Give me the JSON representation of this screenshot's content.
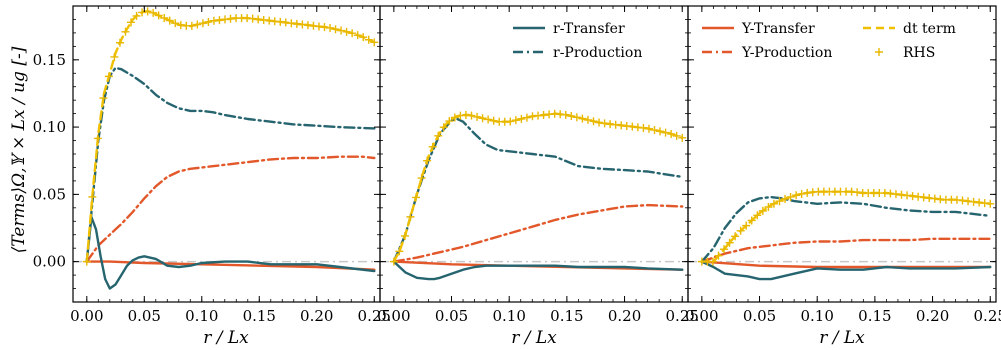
{
  "figure": {
    "ylabel": "⟨Terms⟩Ω,𝕐 × Lx / ug [-]",
    "xlabel": "r / Lx",
    "colors": {
      "r_transfer": "#26656f",
      "r_production": "#26656f",
      "y_transfer": "#e2582a",
      "y_production": "#e2582a",
      "dt_term": "#f0c000",
      "rhs": "#e8b800",
      "zero_line": "#c8c8c8"
    }
  },
  "chart_data": [
    {
      "type": "line",
      "panel": 1,
      "xlim": [
        -0.012,
        0.255
      ],
      "ylim": [
        -0.03,
        0.19
      ],
      "xticks": [
        "0.00",
        "0.05",
        "0.10",
        "0.15",
        "0.20",
        "0.25"
      ],
      "yticks": [
        "0.00",
        "0.05",
        "0.10",
        "0.15"
      ],
      "legend": [],
      "series": [
        {
          "name": "r-Transfer",
          "key": "r_transfer",
          "x": [
            0,
            0.004,
            0.008,
            0.012,
            0.016,
            0.02,
            0.025,
            0.03,
            0.035,
            0.04,
            0.045,
            0.05,
            0.06,
            0.07,
            0.08,
            0.09,
            0.1,
            0.12,
            0.14,
            0.16,
            0.18,
            0.2,
            0.22,
            0.25
          ],
          "y": [
            0,
            0.033,
            0.024,
            0.004,
            -0.013,
            -0.02,
            -0.017,
            -0.01,
            -0.003,
            0.001,
            0.003,
            0.004,
            0.002,
            -0.003,
            -0.004,
            -0.003,
            -0.001,
            0.0,
            0.0,
            -0.002,
            -0.002,
            -0.002,
            -0.004,
            -0.007
          ]
        },
        {
          "name": "r-Production",
          "key": "r_production",
          "x": [
            0,
            0.005,
            0.01,
            0.015,
            0.02,
            0.025,
            0.03,
            0.04,
            0.05,
            0.06,
            0.07,
            0.08,
            0.09,
            0.1,
            0.11,
            0.12,
            0.14,
            0.16,
            0.18,
            0.2,
            0.22,
            0.25
          ],
          "y": [
            0,
            0.045,
            0.09,
            0.12,
            0.138,
            0.144,
            0.143,
            0.138,
            0.132,
            0.124,
            0.118,
            0.114,
            0.112,
            0.112,
            0.111,
            0.109,
            0.106,
            0.104,
            0.102,
            0.101,
            0.1,
            0.099
          ]
        },
        {
          "name": "Y-Transfer",
          "key": "y_transfer",
          "x": [
            0,
            0.02,
            0.05,
            0.1,
            0.15,
            0.2,
            0.25
          ],
          "y": [
            0,
            0.0,
            -0.001,
            -0.002,
            -0.003,
            -0.004,
            -0.006
          ]
        },
        {
          "name": "Y-Production",
          "key": "y_production",
          "x": [
            0,
            0.005,
            0.01,
            0.02,
            0.03,
            0.04,
            0.05,
            0.06,
            0.07,
            0.08,
            0.09,
            0.1,
            0.12,
            0.14,
            0.16,
            0.18,
            0.2,
            0.22,
            0.24,
            0.25
          ],
          "y": [
            0,
            0.006,
            0.012,
            0.02,
            0.028,
            0.037,
            0.047,
            0.056,
            0.063,
            0.067,
            0.069,
            0.07,
            0.072,
            0.074,
            0.076,
            0.077,
            0.077,
            0.078,
            0.078,
            0.077
          ]
        },
        {
          "name": "dt term",
          "key": "dt_term",
          "x": [
            0,
            0.005,
            0.01,
            0.015,
            0.02,
            0.025,
            0.03,
            0.035,
            0.04,
            0.045,
            0.05,
            0.055,
            0.06,
            0.07,
            0.08,
            0.09,
            0.1,
            0.11,
            0.12,
            0.13,
            0.14,
            0.15,
            0.16,
            0.17,
            0.18,
            0.19,
            0.2,
            0.21,
            0.22,
            0.23,
            0.24,
            0.25
          ],
          "y": [
            0,
            0.05,
            0.095,
            0.125,
            0.14,
            0.155,
            0.165,
            0.173,
            0.18,
            0.184,
            0.186,
            0.186,
            0.184,
            0.18,
            0.176,
            0.175,
            0.177,
            0.179,
            0.18,
            0.181,
            0.181,
            0.18,
            0.179,
            0.178,
            0.177,
            0.176,
            0.175,
            0.174,
            0.172,
            0.17,
            0.167,
            0.163
          ]
        },
        {
          "name": "RHS",
          "key": "rhs",
          "x": [
            0,
            0.005,
            0.01,
            0.015,
            0.02,
            0.025,
            0.03,
            0.035,
            0.04,
            0.045,
            0.05,
            0.055,
            0.06,
            0.07,
            0.08,
            0.09,
            0.1,
            0.11,
            0.12,
            0.13,
            0.14,
            0.15,
            0.16,
            0.17,
            0.18,
            0.19,
            0.2,
            0.21,
            0.22,
            0.23,
            0.24,
            0.25
          ],
          "y": [
            0,
            0.05,
            0.095,
            0.125,
            0.14,
            0.155,
            0.165,
            0.173,
            0.18,
            0.184,
            0.186,
            0.186,
            0.184,
            0.18,
            0.176,
            0.175,
            0.177,
            0.179,
            0.18,
            0.181,
            0.181,
            0.18,
            0.179,
            0.178,
            0.177,
            0.176,
            0.175,
            0.174,
            0.172,
            0.17,
            0.167,
            0.163
          ]
        }
      ]
    },
    {
      "type": "line",
      "panel": 2,
      "xlim": [
        -0.012,
        0.255
      ],
      "ylim": [
        -0.03,
        0.19
      ],
      "xticks": [
        "0.00",
        "0.05",
        "0.10",
        "0.15",
        "0.20",
        "0.25"
      ],
      "yticks": [],
      "legend": [
        {
          "label": "r-Transfer",
          "key": "r_transfer"
        },
        {
          "label": "r-Production",
          "key": "r_production"
        }
      ],
      "series": [
        {
          "name": "r-Transfer",
          "key": "r_transfer",
          "x": [
            0,
            0.01,
            0.02,
            0.03,
            0.035,
            0.04,
            0.05,
            0.06,
            0.07,
            0.08,
            0.1,
            0.12,
            0.14,
            0.16,
            0.18,
            0.2,
            0.22,
            0.25
          ],
          "y": [
            0,
            -0.008,
            -0.012,
            -0.013,
            -0.013,
            -0.012,
            -0.009,
            -0.006,
            -0.004,
            -0.003,
            -0.003,
            -0.003,
            -0.003,
            -0.004,
            -0.004,
            -0.004,
            -0.005,
            -0.006
          ]
        },
        {
          "name": "r-Production",
          "key": "r_production",
          "x": [
            0,
            0.01,
            0.02,
            0.03,
            0.04,
            0.05,
            0.055,
            0.06,
            0.07,
            0.08,
            0.09,
            0.1,
            0.12,
            0.14,
            0.16,
            0.18,
            0.2,
            0.22,
            0.25
          ],
          "y": [
            0,
            0.02,
            0.05,
            0.075,
            0.095,
            0.105,
            0.106,
            0.104,
            0.095,
            0.087,
            0.083,
            0.082,
            0.08,
            0.078,
            0.071,
            0.069,
            0.068,
            0.067,
            0.063
          ]
        },
        {
          "name": "Y-Transfer",
          "key": "y_transfer",
          "x": [
            0,
            0.05,
            0.1,
            0.15,
            0.2,
            0.25
          ],
          "y": [
            0,
            -0.002,
            -0.003,
            -0.004,
            -0.005,
            -0.006
          ]
        },
        {
          "name": "Y-Production",
          "key": "y_production",
          "x": [
            0,
            0.02,
            0.04,
            0.06,
            0.08,
            0.1,
            0.12,
            0.14,
            0.16,
            0.18,
            0.2,
            0.22,
            0.25
          ],
          "y": [
            0,
            0.003,
            0.007,
            0.011,
            0.016,
            0.021,
            0.026,
            0.031,
            0.035,
            0.038,
            0.041,
            0.042,
            0.041
          ]
        },
        {
          "name": "dt term",
          "key": "dt_term",
          "x": [
            0,
            0.005,
            0.01,
            0.015,
            0.02,
            0.025,
            0.03,
            0.035,
            0.04,
            0.045,
            0.05,
            0.055,
            0.06,
            0.065,
            0.07,
            0.075,
            0.08,
            0.09,
            0.1,
            0.11,
            0.12,
            0.13,
            0.14,
            0.15,
            0.16,
            0.17,
            0.18,
            0.19,
            0.2,
            0.21,
            0.22,
            0.23,
            0.24,
            0.25
          ],
          "y": [
            0,
            0.008,
            0.02,
            0.035,
            0.05,
            0.065,
            0.078,
            0.088,
            0.096,
            0.102,
            0.106,
            0.108,
            0.109,
            0.109,
            0.108,
            0.107,
            0.106,
            0.104,
            0.104,
            0.106,
            0.108,
            0.109,
            0.11,
            0.109,
            0.107,
            0.105,
            0.103,
            0.102,
            0.101,
            0.1,
            0.099,
            0.097,
            0.095,
            0.092
          ]
        },
        {
          "name": "RHS",
          "key": "rhs",
          "x": [
            0,
            0.005,
            0.01,
            0.015,
            0.02,
            0.025,
            0.03,
            0.035,
            0.04,
            0.045,
            0.05,
            0.055,
            0.06,
            0.065,
            0.07,
            0.075,
            0.08,
            0.09,
            0.1,
            0.11,
            0.12,
            0.13,
            0.14,
            0.15,
            0.16,
            0.17,
            0.18,
            0.19,
            0.2,
            0.21,
            0.22,
            0.23,
            0.24,
            0.25
          ],
          "y": [
            0,
            0.008,
            0.02,
            0.035,
            0.05,
            0.065,
            0.078,
            0.088,
            0.096,
            0.102,
            0.106,
            0.108,
            0.109,
            0.109,
            0.108,
            0.107,
            0.106,
            0.104,
            0.104,
            0.106,
            0.108,
            0.109,
            0.11,
            0.109,
            0.107,
            0.105,
            0.103,
            0.102,
            0.101,
            0.1,
            0.099,
            0.097,
            0.095,
            0.092
          ]
        }
      ]
    },
    {
      "type": "line",
      "panel": 3,
      "xlim": [
        -0.012,
        0.255
      ],
      "ylim": [
        -0.03,
        0.19
      ],
      "xticks": [
        "0.00",
        "0.05",
        "0.10",
        "0.15",
        "0.20",
        "0.25"
      ],
      "yticks": [],
      "legend": [
        {
          "label": "Y-Transfer",
          "key": "y_transfer"
        },
        {
          "label": "Y-Production",
          "key": "y_production"
        },
        {
          "label": "dt term",
          "key": "dt_term"
        },
        {
          "label": "RHS",
          "key": "rhs"
        }
      ],
      "series": [
        {
          "name": "r-Transfer",
          "key": "r_transfer",
          "x": [
            0,
            0.01,
            0.02,
            0.03,
            0.04,
            0.05,
            0.06,
            0.08,
            0.1,
            0.12,
            0.14,
            0.16,
            0.18,
            0.2,
            0.22,
            0.25
          ],
          "y": [
            0,
            -0.004,
            -0.009,
            -0.01,
            -0.011,
            -0.013,
            -0.013,
            -0.009,
            -0.005,
            -0.006,
            -0.006,
            -0.004,
            -0.005,
            -0.005,
            -0.005,
            -0.004
          ]
        },
        {
          "name": "r-Production",
          "key": "r_production",
          "x": [
            0,
            0.01,
            0.02,
            0.03,
            0.04,
            0.05,
            0.06,
            0.07,
            0.08,
            0.09,
            0.1,
            0.12,
            0.14,
            0.16,
            0.18,
            0.2,
            0.22,
            0.25
          ],
          "y": [
            0,
            0.01,
            0.025,
            0.036,
            0.044,
            0.047,
            0.048,
            0.047,
            0.045,
            0.044,
            0.043,
            0.044,
            0.043,
            0.04,
            0.038,
            0.037,
            0.037,
            0.034
          ]
        },
        {
          "name": "Y-Transfer",
          "key": "y_transfer",
          "x": [
            0,
            0.05,
            0.1,
            0.15,
            0.2,
            0.25
          ],
          "y": [
            0,
            -0.003,
            -0.004,
            -0.004,
            -0.004,
            -0.004
          ]
        },
        {
          "name": "Y-Production",
          "key": "y_production",
          "x": [
            0,
            0.01,
            0.02,
            0.03,
            0.04,
            0.05,
            0.06,
            0.07,
            0.08,
            0.1,
            0.12,
            0.14,
            0.16,
            0.18,
            0.2,
            0.22,
            0.25
          ],
          "y": [
            0,
            0.003,
            0.006,
            0.008,
            0.01,
            0.011,
            0.012,
            0.013,
            0.014,
            0.015,
            0.015,
            0.016,
            0.016,
            0.016,
            0.017,
            0.017,
            0.017
          ]
        },
        {
          "name": "dt term",
          "key": "dt_term",
          "x": [
            0,
            0.01,
            0.02,
            0.03,
            0.04,
            0.05,
            0.06,
            0.07,
            0.08,
            0.09,
            0.1,
            0.11,
            0.12,
            0.13,
            0.14,
            0.15,
            0.16,
            0.17,
            0.18,
            0.19,
            0.2,
            0.21,
            0.22,
            0.23,
            0.24,
            0.25
          ],
          "y": [
            0,
            0.0,
            0.01,
            0.02,
            0.028,
            0.036,
            0.042,
            0.046,
            0.049,
            0.051,
            0.052,
            0.052,
            0.052,
            0.052,
            0.051,
            0.051,
            0.051,
            0.05,
            0.049,
            0.048,
            0.047,
            0.046,
            0.046,
            0.045,
            0.044,
            0.043
          ]
        },
        {
          "name": "RHS",
          "key": "rhs",
          "x": [
            0,
            0.01,
            0.02,
            0.03,
            0.04,
            0.05,
            0.06,
            0.07,
            0.08,
            0.09,
            0.1,
            0.11,
            0.12,
            0.13,
            0.14,
            0.15,
            0.16,
            0.17,
            0.18,
            0.19,
            0.2,
            0.21,
            0.22,
            0.23,
            0.24,
            0.25
          ],
          "y": [
            0,
            0.0,
            0.01,
            0.02,
            0.028,
            0.036,
            0.042,
            0.046,
            0.049,
            0.051,
            0.052,
            0.052,
            0.052,
            0.052,
            0.051,
            0.051,
            0.051,
            0.05,
            0.049,
            0.048,
            0.047,
            0.046,
            0.046,
            0.045,
            0.044,
            0.043
          ]
        }
      ]
    }
  ]
}
